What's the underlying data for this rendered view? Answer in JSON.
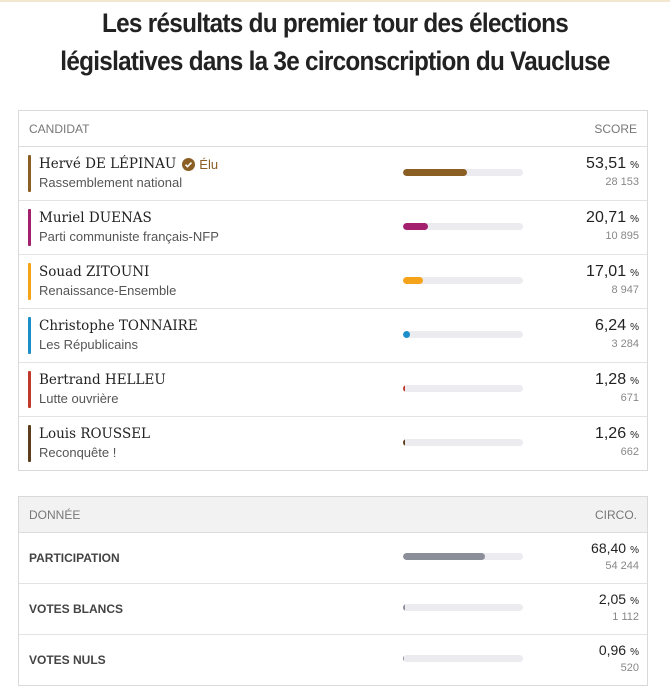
{
  "header": {
    "title": "Les résultats du premier tour des élections législatives dans la 3e circonscription du Vaucluse"
  },
  "percent_sign": "%",
  "candidates": {
    "columns": [
      "CANDIDAT",
      "SCORE"
    ],
    "rows": [
      {
        "name": "Hervé DE LÉPINAU",
        "elected_label": "Élu",
        "party": "Rassemblement national",
        "score": {
          "value": 53.51,
          "label": "53,51"
        },
        "votes": "28 153",
        "color": "#8b5e24"
      },
      {
        "name": "Muriel DUENAS",
        "party": "Parti communiste français-NFP",
        "score": {
          "value": 20.71,
          "label": "20,71"
        },
        "votes": "10 895",
        "color": "#a3206f"
      },
      {
        "name": "Souad ZITOUNI",
        "party": "Renaissance-Ensemble",
        "score": {
          "value": 17.01,
          "label": "17,01"
        },
        "votes": "8 947",
        "color": "#f5a319"
      },
      {
        "name": "Christophe TONNAIRE",
        "party": "Les Républicains",
        "score": {
          "value": 6.24,
          "label": "6,24"
        },
        "votes": "3 284",
        "color": "#1a8fc9"
      },
      {
        "name": "Bertrand HELLEU",
        "party": "Lutte ouvrière",
        "score": {
          "value": 1.28,
          "label": "1,28"
        },
        "votes": "671",
        "color": "#c0392b"
      },
      {
        "name": "Louis ROUSSEL",
        "party": "Reconquête !",
        "score": {
          "value": 1.26,
          "label": "1,26"
        },
        "votes": "662",
        "color": "#5c3d1e"
      }
    ]
  },
  "turnout": {
    "columns": [
      "DONNÉE",
      "CIRCO."
    ],
    "rows": [
      {
        "label": "PARTICIPATION",
        "score": {
          "value": 68.4,
          "label": "68,40"
        },
        "count": "54 244",
        "color": "#8a8f99"
      },
      {
        "label": "VOTES BLANCS",
        "score": {
          "value": 2.05,
          "label": "2,05"
        },
        "count": "1 112",
        "color": "#8a8f99"
      },
      {
        "label": "VOTES NULS",
        "score": {
          "value": 0.96,
          "label": "0,96"
        },
        "count": "520",
        "color": "#8a8f99"
      }
    ]
  }
}
